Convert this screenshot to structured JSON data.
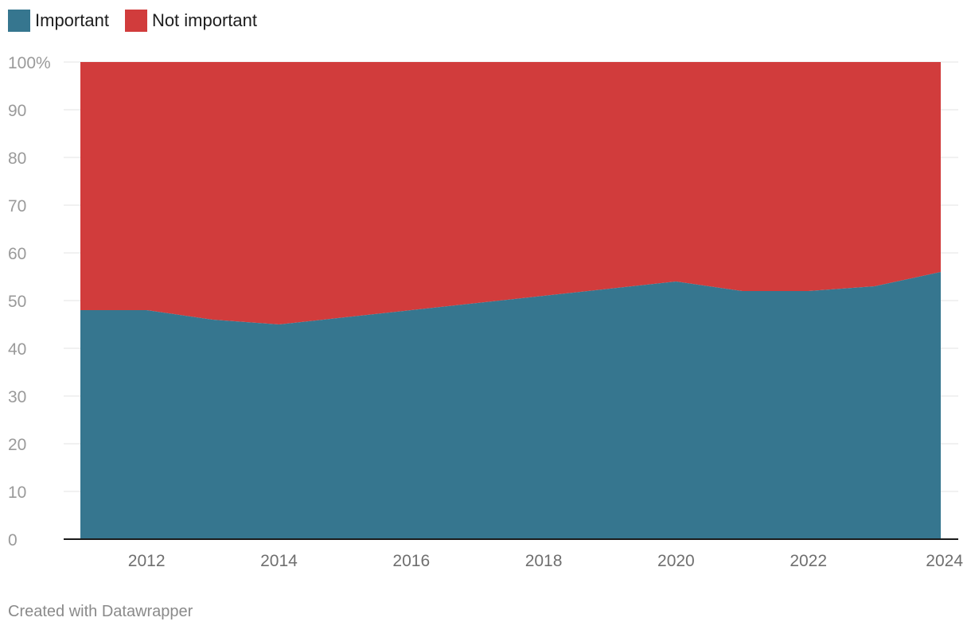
{
  "legend": {
    "important_label": "Important",
    "not_important_label": "Not important",
    "important_color": "#36768f",
    "not_important_color": "#d13c3c"
  },
  "chart_data": {
    "type": "area",
    "stacked": true,
    "x": [
      2011,
      2012,
      2013,
      2014,
      2015,
      2016,
      2017,
      2018,
      2019,
      2020,
      2021,
      2022,
      2023,
      2024
    ],
    "series": [
      {
        "name": "Important",
        "color": "#36768f",
        "values": [
          48,
          48,
          46,
          45,
          46.5,
          48,
          49.5,
          51,
          52.5,
          54,
          52,
          52,
          53,
          56
        ]
      },
      {
        "name": "Not important",
        "color": "#d13c3c",
        "values": [
          52,
          52,
          54,
          55,
          53.5,
          52,
          50.5,
          49,
          47.5,
          46,
          48,
          48,
          47,
          44
        ]
      }
    ],
    "ylim": [
      0,
      100
    ],
    "yticks": [
      0,
      10,
      20,
      30,
      40,
      50,
      60,
      70,
      80,
      90,
      100
    ],
    "ytick_labels": [
      "0",
      "10",
      "20",
      "30",
      "40",
      "50",
      "60",
      "70",
      "80",
      "90",
      "100%"
    ],
    "xticks": [
      2012,
      2014,
      2016,
      2018,
      2020,
      2022,
      2024
    ],
    "xtick_labels": [
      "2012",
      "2014",
      "2016",
      "2018",
      "2020",
      "2022",
      "2024"
    ],
    "grid": true,
    "legend_position": "top-left"
  },
  "footer": {
    "credit": "Created with Datawrapper"
  }
}
